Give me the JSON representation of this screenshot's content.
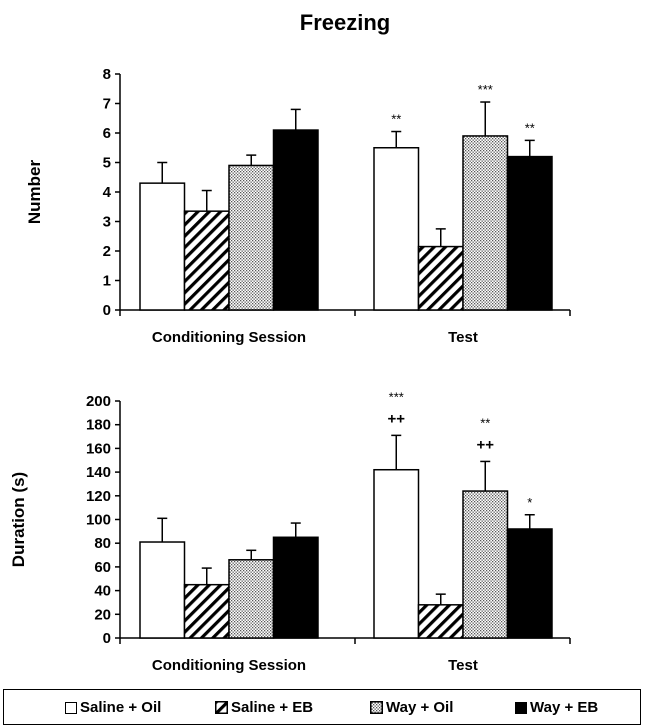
{
  "colors": {
    "saline_oil": "#ffffff",
    "saline_eb": "hatch",
    "way_oil": "dots",
    "way_eb": "#000000"
  },
  "legend": [
    {
      "label": "Saline + Oil",
      "style": "white"
    },
    {
      "label": "Saline + EB",
      "style": "hatch"
    },
    {
      "label": "Way + Oil",
      "style": "dots"
    },
    {
      "label": "Way + EB",
      "style": "black"
    }
  ],
  "chart_data": [
    {
      "type": "bar",
      "title": "Freezing",
      "xlabel": "",
      "ylabel": "Number",
      "ylim": [
        0,
        8
      ],
      "yticks": [
        0,
        1,
        2,
        3,
        4,
        5,
        6,
        7,
        8
      ],
      "categories": [
        "Conditioning Session",
        "Test"
      ],
      "series": [
        {
          "name": "Saline + Oil",
          "values": [
            4.3,
            5.5
          ],
          "errors": [
            0.7,
            0.55
          ]
        },
        {
          "name": "Saline + EB",
          "values": [
            3.35,
            2.15
          ],
          "errors": [
            0.7,
            0.6
          ]
        },
        {
          "name": "Way + Oil",
          "values": [
            4.9,
            5.9
          ],
          "errors": [
            0.35,
            1.15
          ]
        },
        {
          "name": "Way + EB",
          "values": [
            6.1,
            5.2
          ],
          "errors": [
            0.7,
            0.55
          ]
        }
      ],
      "annotations": [
        {
          "category": 1,
          "series": 0,
          "lines": [
            "**"
          ]
        },
        {
          "category": 1,
          "series": 2,
          "lines": [
            "***"
          ]
        },
        {
          "category": 1,
          "series": 3,
          "lines": [
            "**"
          ]
        }
      ]
    },
    {
      "type": "bar",
      "xlabel": "",
      "ylabel": "Duration (s)",
      "ylim": [
        0,
        200
      ],
      "yticks": [
        0,
        20,
        40,
        60,
        80,
        100,
        120,
        140,
        160,
        180,
        200
      ],
      "categories": [
        "Conditioning Session",
        "Test"
      ],
      "series": [
        {
          "name": "Saline + Oil",
          "values": [
            81,
            142
          ],
          "errors": [
            20,
            29
          ]
        },
        {
          "name": "Saline + EB",
          "values": [
            45,
            28
          ],
          "errors": [
            14,
            9
          ]
        },
        {
          "name": "Way + Oil",
          "values": [
            66,
            124
          ],
          "errors": [
            8,
            25
          ]
        },
        {
          "name": "Way + EB",
          "values": [
            85,
            92
          ],
          "errors": [
            12,
            12
          ]
        }
      ],
      "annotations": [
        {
          "category": 1,
          "series": 0,
          "lines": [
            "***",
            "++"
          ]
        },
        {
          "category": 1,
          "series": 2,
          "lines": [
            "**",
            "++"
          ]
        },
        {
          "category": 1,
          "series": 3,
          "lines": [
            "*"
          ]
        }
      ]
    }
  ]
}
